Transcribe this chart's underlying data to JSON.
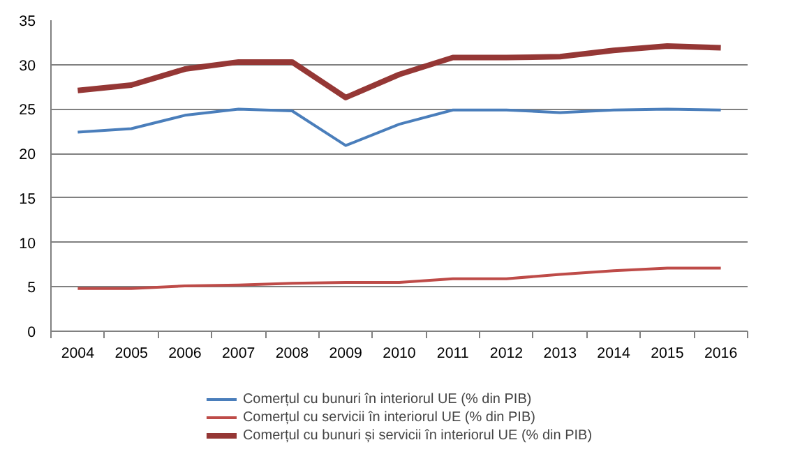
{
  "chart_data": {
    "type": "line",
    "categories": [
      "2004",
      "2005",
      "2006",
      "2007",
      "2008",
      "2009",
      "2010",
      "2011",
      "2012",
      "2013",
      "2014",
      "2015",
      "2016"
    ],
    "series": [
      {
        "name": "Comerțul cu bunuri în interiorul UE (% din PIB)",
        "color": "#4a7ebb",
        "values": [
          22.4,
          22.8,
          24.3,
          25.0,
          24.8,
          20.9,
          23.3,
          24.9,
          24.9,
          24.6,
          24.9,
          25.0,
          24.9
        ]
      },
      {
        "name": "Comerțul cu servicii în interiorul UE (% din PIB)",
        "color": "#be4b48",
        "values": [
          4.8,
          4.8,
          5.1,
          5.2,
          5.4,
          5.5,
          5.5,
          5.9,
          5.9,
          6.4,
          6.8,
          7.1,
          7.1
        ]
      },
      {
        "name": "Comerțul cu bunuri și servicii în interiorul UE (% din PIB)",
        "color": "#953735",
        "values": [
          27.1,
          27.7,
          29.5,
          30.3,
          30.3,
          26.3,
          28.9,
          30.8,
          30.8,
          30.9,
          31.6,
          32.1,
          31.9
        ]
      }
    ],
    "ylim": [
      0,
      35
    ],
    "yticks": [
      0,
      5,
      10,
      15,
      20,
      25,
      30,
      35
    ],
    "grid": "y",
    "legend": "bottom",
    "marker": "none",
    "line_style": "solid"
  }
}
